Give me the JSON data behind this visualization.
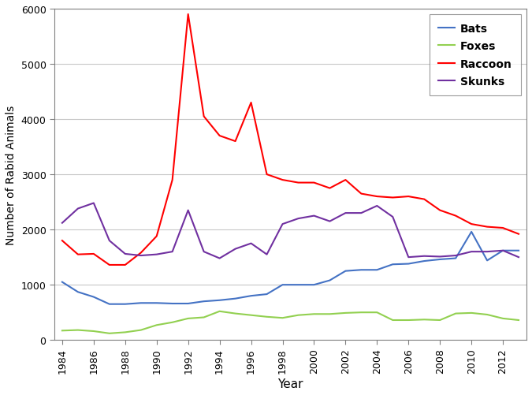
{
  "years": [
    1984,
    1985,
    1986,
    1987,
    1988,
    1989,
    1990,
    1991,
    1992,
    1993,
    1994,
    1995,
    1996,
    1997,
    1998,
    1999,
    2000,
    2001,
    2002,
    2003,
    2004,
    2005,
    2006,
    2007,
    2008,
    2009,
    2010,
    2011,
    2012,
    2013
  ],
  "bats": [
    1050,
    870,
    780,
    650,
    650,
    670,
    670,
    660,
    660,
    700,
    720,
    750,
    800,
    830,
    1000,
    1000,
    1000,
    1080,
    1250,
    1270,
    1270,
    1370,
    1380,
    1430,
    1460,
    1480,
    1960,
    1440,
    1620,
    1620
  ],
  "foxes": [
    170,
    180,
    160,
    120,
    140,
    180,
    270,
    320,
    390,
    410,
    520,
    480,
    450,
    420,
    400,
    450,
    470,
    470,
    490,
    500,
    500,
    360,
    360,
    370,
    360,
    480,
    490,
    460,
    390,
    360
  ],
  "raccoon": [
    1800,
    1550,
    1560,
    1360,
    1360,
    1580,
    1880,
    2900,
    5900,
    4050,
    3700,
    3600,
    4300,
    3000,
    2900,
    2850,
    2850,
    2750,
    2900,
    2650,
    2600,
    2580,
    2600,
    2550,
    2350,
    2250,
    2100,
    2050,
    2030,
    1920
  ],
  "skunks": [
    2120,
    2380,
    2480,
    1800,
    1560,
    1530,
    1550,
    1600,
    2350,
    1600,
    1480,
    1650,
    1750,
    1550,
    2100,
    2200,
    2250,
    2150,
    2300,
    2300,
    2430,
    2230,
    1500,
    1520,
    1510,
    1530,
    1600,
    1600,
    1620,
    1500
  ],
  "colors": {
    "bats": "#4472C4",
    "foxes": "#92D050",
    "raccoon": "#FF0000",
    "skunks": "#7030A0"
  },
  "xlabel": "Year",
  "ylabel": "Number of Rabid Animals",
  "ylim": [
    0,
    6000
  ],
  "yticks": [
    0,
    1000,
    2000,
    3000,
    4000,
    5000,
    6000
  ],
  "xticks": [
    1984,
    1986,
    1988,
    1990,
    1992,
    1994,
    1996,
    1998,
    2000,
    2002,
    2004,
    2006,
    2008,
    2010,
    2012
  ],
  "legend_labels": [
    "Bats",
    "Foxes",
    "Raccoon",
    "Skunks"
  ],
  "background_color": "#ffffff",
  "grid_color": "#c8c8c8",
  "spine_color": "#808080"
}
